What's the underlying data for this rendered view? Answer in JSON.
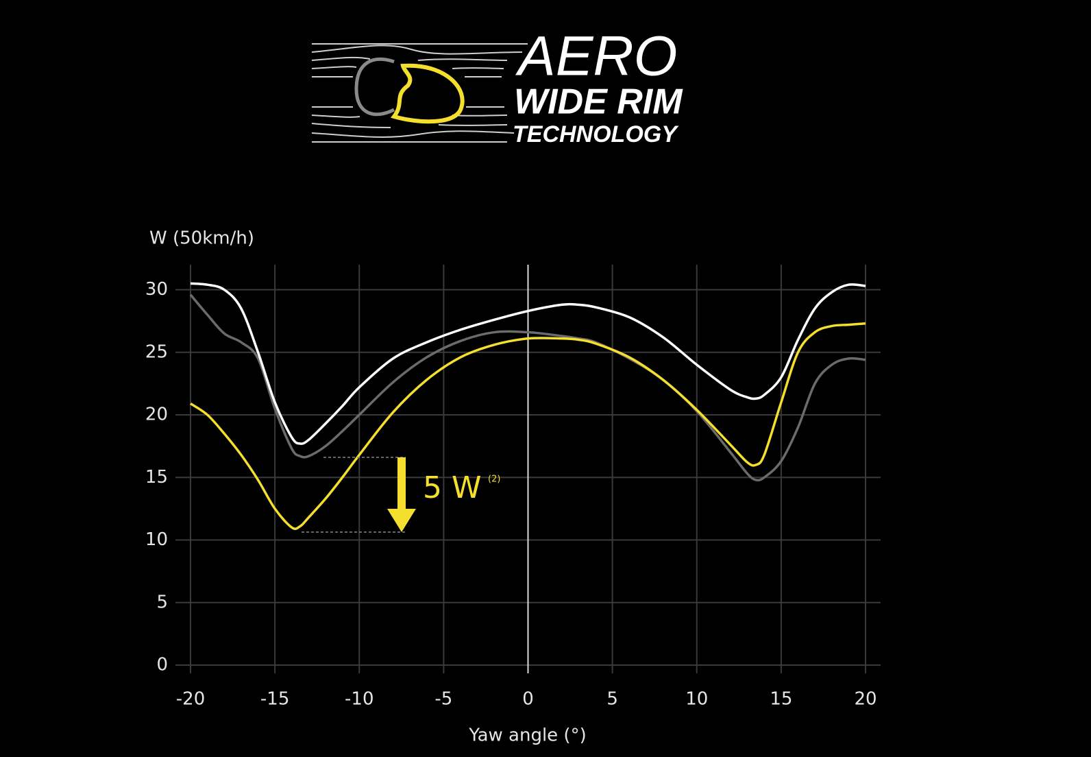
{
  "logo": {
    "line1": "AERO",
    "line2": "WIDE RIM",
    "line3": "TECHNOLOGY"
  },
  "chart_data": {
    "type": "line",
    "y_label": "W (50km/h)",
    "x_label": "Yaw angle (°)",
    "annotation": {
      "text": "5 W",
      "superscript": "(2)"
    },
    "x": [
      -20,
      -19,
      -18,
      -17,
      -16,
      -15,
      -14,
      -13.5,
      -13,
      -12,
      -11,
      -10,
      -8,
      -6,
      -4,
      -2,
      0,
      2,
      3,
      4,
      6,
      8,
      10,
      12,
      13,
      13.5,
      14,
      15,
      16,
      17,
      18,
      19,
      20
    ],
    "series": [
      {
        "color": "#ffffff",
        "values": [
          30.5,
          30.4,
          30,
          28.5,
          25,
          21,
          18.2,
          17.7,
          18,
          19.3,
          20.7,
          22.2,
          24.5,
          25.8,
          26.8,
          27.6,
          28.3,
          28.8,
          28.8,
          28.6,
          27.8,
          26.2,
          24,
          22,
          21.4,
          21.3,
          21.6,
          23,
          26,
          28.5,
          29.8,
          30.4,
          30.3
        ]
      },
      {
        "color": "#6b6b6b",
        "values": [
          29.6,
          28,
          26.5,
          25.8,
          24.5,
          20.5,
          17.3,
          16.7,
          16.7,
          17.5,
          18.7,
          20,
          22.6,
          24.6,
          25.9,
          26.6,
          26.6,
          26.3,
          26.1,
          25.8,
          24.5,
          22.8,
          20.3,
          17,
          15.3,
          14.8,
          15,
          16.3,
          19,
          22.5,
          24,
          24.5,
          24.4
        ]
      },
      {
        "color": "#f5df2e",
        "values": [
          20.9,
          20,
          18.5,
          16.8,
          14.8,
          12.5,
          11,
          11.1,
          11.8,
          13.3,
          15,
          16.8,
          20.2,
          22.8,
          24.6,
          25.6,
          26.1,
          26.1,
          26,
          25.7,
          24.6,
          22.8,
          20.4,
          17.6,
          16.2,
          16,
          16.8,
          21,
          25,
          26.6,
          27.1,
          27.2,
          27.3
        ]
      }
    ],
    "xlim": [
      -20,
      20
    ],
    "ylim": [
      0,
      32
    ],
    "xticks": [
      -20,
      -15,
      -10,
      -5,
      0,
      5,
      10,
      15,
      20
    ],
    "yticks": [
      0,
      5,
      10,
      15,
      20,
      25,
      30
    ],
    "grid": true
  }
}
